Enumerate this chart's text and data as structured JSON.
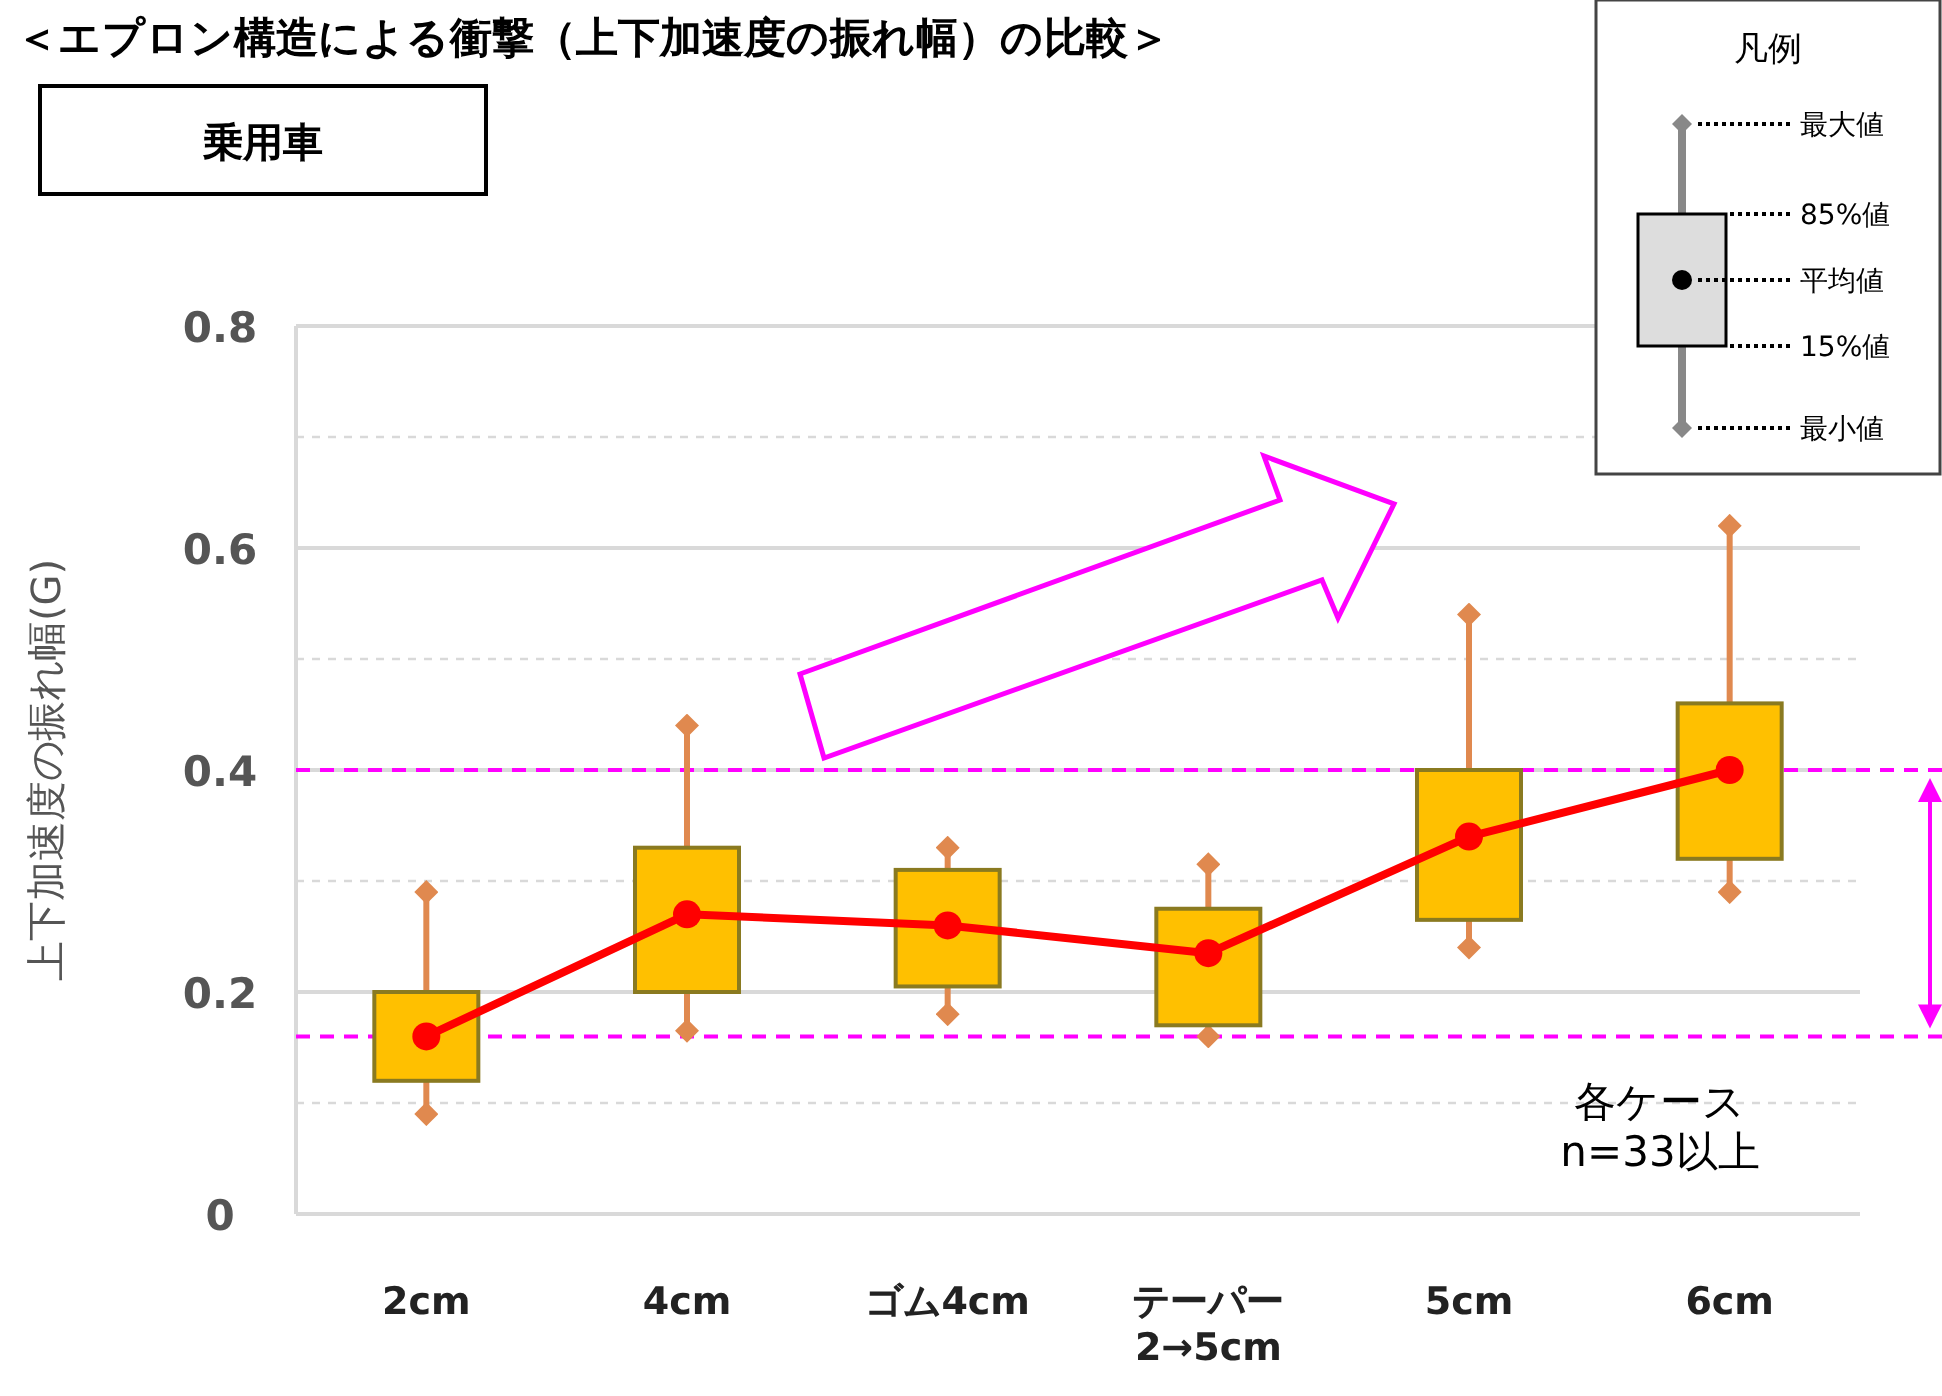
{
  "chart_data": {
    "type": "box",
    "title": "＜エプロン構造による衝撃（上下加速度の振れ幅）の比較＞",
    "subtitle": "乗用車",
    "ylabel": "上下加速度の振れ幅(G)",
    "legend_title": "凡例",
    "grid": "y",
    "categories": [
      "2cm",
      "4cm",
      "ゴム4cm",
      "テーパー\n2→5cm",
      "5cm",
      "6cm"
    ],
    "ylim": [
      0,
      0.8
    ],
    "yticks": [
      0,
      {
        "value": 0.1,
        "label": null
      },
      0.2,
      {
        "value": 0.3,
        "label": null
      },
      0.4,
      {
        "value": 0.5,
        "label": null
      },
      0.6,
      {
        "value": 0.7,
        "label": null
      },
      0.8
    ],
    "series": [
      {
        "color": "#ffc000",
        "boxes": [
          {
            "low": 0.09,
            "q1": 0.12,
            "q3": 0.2,
            "high": 0.29
          },
          {
            "low": 0.165,
            "q1": 0.2,
            "q3": 0.33,
            "high": 0.44
          },
          {
            "low": 0.18,
            "q1": 0.205,
            "q3": 0.31,
            "high": 0.33
          },
          {
            "low": 0.16,
            "q1": 0.17,
            "q3": 0.275,
            "high": 0.315
          },
          {
            "low": 0.24,
            "q1": 0.265,
            "q3": 0.4,
            "high": 0.54
          },
          {
            "low": 0.29,
            "q1": 0.32,
            "q3": 0.46,
            "high": 0.62
          }
        ]
      },
      {
        "type": "line",
        "color": "#ff0000",
        "marker": "circle",
        "values": [
          0.16,
          0.27,
          0.26,
          0.235,
          0.34,
          0.4
        ]
      }
    ],
    "ref_lines": [
      {
        "axis": "y",
        "value": 0.16,
        "color": "#ff00ff",
        "line_style": "dashed"
      },
      {
        "axis": "y",
        "value": 0.4,
        "color": "#ff00ff",
        "line_style": "dashed"
      }
    ],
    "annotations": [
      "最大値",
      "85%値",
      "平均値",
      "15%値",
      "最小値",
      "各ケース\nn=33以上"
    ]
  }
}
